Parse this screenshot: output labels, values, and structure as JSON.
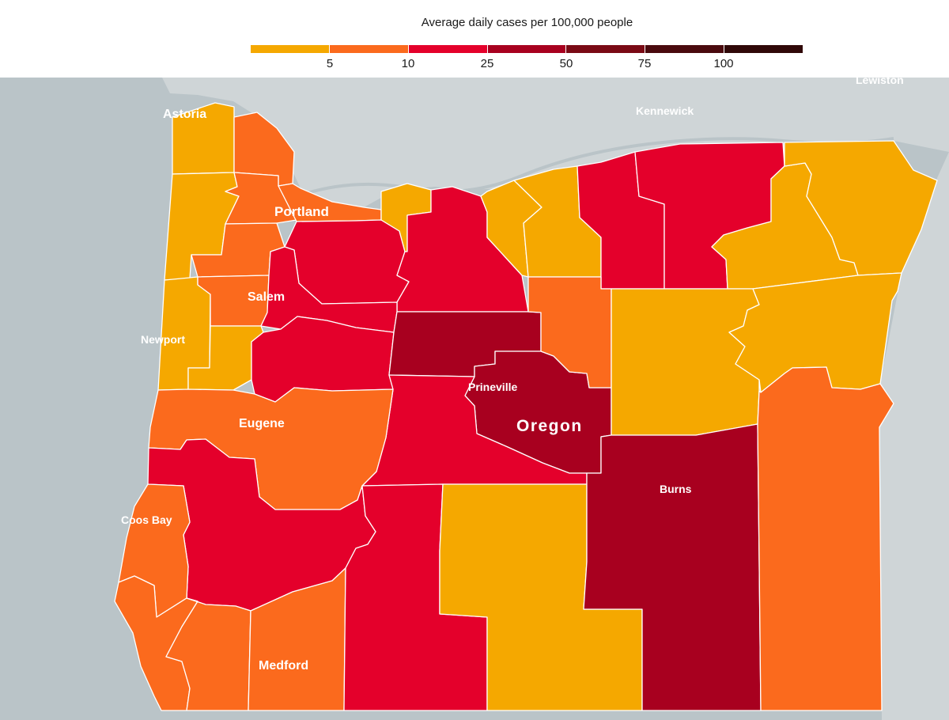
{
  "legend": {
    "title": "Average daily cases per 100,000 people",
    "colors": [
      "#f5a800",
      "#fb6a1d",
      "#e4002b",
      "#a8001f",
      "#7a0a15",
      "#4a0a0e",
      "#300808"
    ],
    "ticks": [
      "5",
      "10",
      "25",
      "50",
      "75",
      "100"
    ]
  },
  "map": {
    "colors": {
      "water": "#bac4c8",
      "land": "#cfd5d7",
      "bin_0_5": "#f5a800",
      "bin_5_10": "#fb6a1d",
      "bin_10_25": "#e4002b",
      "bin_25_50": "#a8001f"
    },
    "labels": {
      "oregon": "Oregon",
      "astoria": "Astoria",
      "portland": "Portland",
      "salem": "Salem",
      "newport": "Newport",
      "eugene": "Eugene",
      "coos_bay": "Coos Bay",
      "medford": "Medford",
      "prineville": "Prineville",
      "burns": "Burns",
      "kennewick": "Kennewick",
      "lewiston": "Lewiston"
    }
  }
}
